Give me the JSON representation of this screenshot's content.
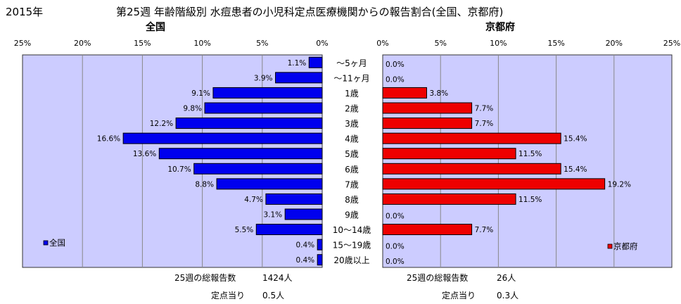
{
  "header": {
    "year": "2015年",
    "title": "第25週 年齢階級別 水痘患者の小児科定点医療機関からの報告割合(全国、京都府)"
  },
  "colors": {
    "plot_bg": "#ccccff",
    "national": "#0000ee",
    "kyoto": "#ee0000",
    "grid": "#888888"
  },
  "chart_data": [
    {
      "type": "bar",
      "orientation": "horizontal",
      "direction": "reversed",
      "title": "全国",
      "legend": "全国",
      "legend_position": "bottom-left",
      "unit": "%",
      "categories": [
        "～5ヶ月",
        "～11ヶ月",
        "1歳",
        "2歳",
        "3歳",
        "4歳",
        "5歳",
        "6歳",
        "7歳",
        "8歳",
        "9歳",
        "10～14歳",
        "15～19歳",
        "20歳以上"
      ],
      "values": [
        1.1,
        3.9,
        9.1,
        9.8,
        12.2,
        16.6,
        13.6,
        10.7,
        8.8,
        4.7,
        3.1,
        5.5,
        0.4,
        0.4
      ],
      "xlim": [
        0,
        25
      ],
      "ticks": [
        25,
        20,
        15,
        10,
        5,
        0
      ],
      "grid": true,
      "footer": {
        "total_label": "25週の総報告数",
        "total_value": "1424人",
        "per_label": "定点当り",
        "per_value": "0.5人"
      }
    },
    {
      "type": "bar",
      "orientation": "horizontal",
      "title": "京都府",
      "legend": "京都府",
      "legend_position": "bottom-right",
      "unit": "%",
      "categories": [
        "～5ヶ月",
        "～11ヶ月",
        "1歳",
        "2歳",
        "3歳",
        "4歳",
        "5歳",
        "6歳",
        "7歳",
        "8歳",
        "9歳",
        "10～14歳",
        "15～19歳",
        "20歳以上"
      ],
      "values": [
        0.0,
        0.0,
        3.8,
        7.7,
        7.7,
        15.4,
        11.5,
        15.4,
        19.2,
        11.5,
        0.0,
        7.7,
        0.0,
        0.0
      ],
      "xlim": [
        0,
        25
      ],
      "ticks": [
        0,
        5,
        10,
        15,
        20,
        25
      ],
      "grid": true,
      "footer": {
        "total_label": "25週の総報告数",
        "total_value": "26人",
        "per_label": "定点当り",
        "per_value": "0.3人"
      }
    }
  ]
}
